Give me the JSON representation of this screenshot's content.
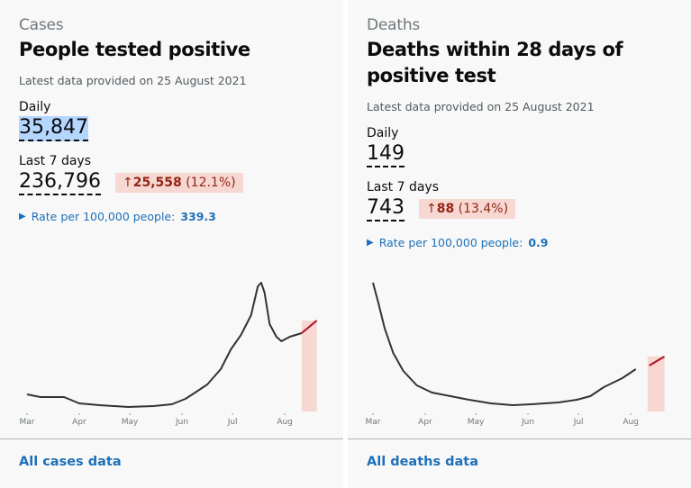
{
  "cards": [
    {
      "caption": "Cases",
      "title": "People tested positive",
      "latest": "Latest data provided on 25 August 2021",
      "daily_label": "Daily",
      "daily_value": "35,847",
      "week_label": "Last 7 days",
      "week_value": "236,796",
      "change_arrow": "↑",
      "change_value": "25,558",
      "change_pct": "(12.1%)",
      "rate_label": "Rate per 100,000 people:",
      "rate_value": "339.3",
      "link": "All cases data"
    },
    {
      "caption": "Deaths",
      "title": "Deaths within 28 days of positive test",
      "latest": "Latest data provided on 25 August 2021",
      "daily_label": "Daily",
      "daily_value": "149",
      "week_label": "Last 7 days",
      "week_value": "743",
      "change_arrow": "↑",
      "change_value": "88",
      "change_pct": "(13.4%)",
      "rate_label": "Rate per 100,000 people:",
      "rate_value": "0.9",
      "link": "All deaths data"
    }
  ],
  "colors": {
    "line": "#333333",
    "recent_line": "#b10e1e",
    "recent_fill": "#f6d7d2",
    "link": "#1d70b8"
  },
  "chart_data": [
    {
      "type": "line",
      "title": "People tested positive",
      "x_unit": "days since 1 Mar",
      "xticks": [
        "Mar",
        "Apr",
        "May",
        "Jun",
        "Jul",
        "Aug"
      ],
      "xtick_days": [
        0,
        31,
        61,
        92,
        122,
        153
      ],
      "recent_from": 163,
      "points": [
        [
          0,
          19
        ],
        [
          8,
          16
        ],
        [
          16,
          16
        ],
        [
          22,
          16
        ],
        [
          31,
          9
        ],
        [
          43,
          7
        ],
        [
          60,
          5
        ],
        [
          75,
          6
        ],
        [
          86,
          8
        ],
        [
          94,
          14
        ],
        [
          99,
          20
        ],
        [
          107,
          30
        ],
        [
          115,
          47
        ],
        [
          121,
          69
        ],
        [
          127,
          85
        ],
        [
          133,
          107
        ],
        [
          137,
          139
        ],
        [
          139,
          143
        ],
        [
          141,
          132
        ],
        [
          144,
          97
        ],
        [
          148,
          83
        ],
        [
          151,
          78
        ],
        [
          156,
          83
        ],
        [
          163,
          87
        ],
        [
          172,
          101
        ]
      ]
    },
    {
      "type": "line",
      "title": "Deaths within 28 days of positive test",
      "x_unit": "days since 1 Mar",
      "xticks": [
        "Mar",
        "Apr",
        "May",
        "Jun",
        "Jul",
        "Aug"
      ],
      "xtick_days": [
        0,
        31,
        61,
        92,
        122,
        153
      ],
      "recent_from": 163,
      "points": [
        [
          0,
          143
        ],
        [
          3,
          122
        ],
        [
          7,
          92
        ],
        [
          12,
          65
        ],
        [
          18,
          45
        ],
        [
          26,
          29
        ],
        [
          35,
          21
        ],
        [
          46,
          17
        ],
        [
          57,
          13
        ],
        [
          70,
          9
        ],
        [
          83,
          7
        ],
        [
          94,
          8
        ],
        [
          110,
          10
        ],
        [
          121,
          13
        ],
        [
          129,
          17
        ],
        [
          137,
          27
        ],
        [
          148,
          37
        ],
        [
          156,
          47
        ],
        [
          164,
          51
        ],
        [
          173,
          61
        ]
      ]
    }
  ]
}
